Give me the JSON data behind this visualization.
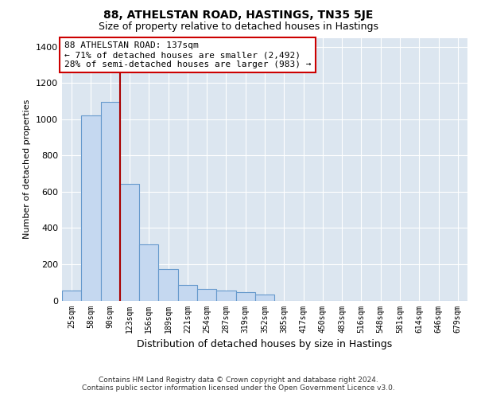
{
  "title": "88, ATHELSTAN ROAD, HASTINGS, TN35 5JE",
  "subtitle": "Size of property relative to detached houses in Hastings",
  "xlabel": "Distribution of detached houses by size in Hastings",
  "ylabel": "Number of detached properties",
  "categories": [
    "25sqm",
    "58sqm",
    "90sqm",
    "123sqm",
    "156sqm",
    "189sqm",
    "221sqm",
    "254sqm",
    "287sqm",
    "319sqm",
    "352sqm",
    "385sqm",
    "417sqm",
    "450sqm",
    "483sqm",
    "516sqm",
    "548sqm",
    "581sqm",
    "614sqm",
    "646sqm",
    "679sqm"
  ],
  "values": [
    55,
    1020,
    1095,
    645,
    310,
    175,
    85,
    65,
    55,
    45,
    35,
    0,
    0,
    0,
    0,
    0,
    0,
    0,
    0,
    0,
    0
  ],
  "bar_color": "#c5d8f0",
  "bar_edge_color": "#6699cc",
  "annotation_line1": "88 ATHELSTAN ROAD: 137sqm",
  "annotation_line2": "← 71% of detached houses are smaller (2,492)",
  "annotation_line3": "28% of semi-detached houses are larger (983) →",
  "vline_color": "#aa0000",
  "annotation_box_color": "#ffffff",
  "annotation_box_edge": "#cc0000",
  "background_color": "#dce6f0",
  "ylim": [
    0,
    1450
  ],
  "yticks": [
    0,
    200,
    400,
    600,
    800,
    1000,
    1200,
    1400
  ],
  "footer_line1": "Contains HM Land Registry data © Crown copyright and database right 2024.",
  "footer_line2": "Contains public sector information licensed under the Open Government Licence v3.0."
}
